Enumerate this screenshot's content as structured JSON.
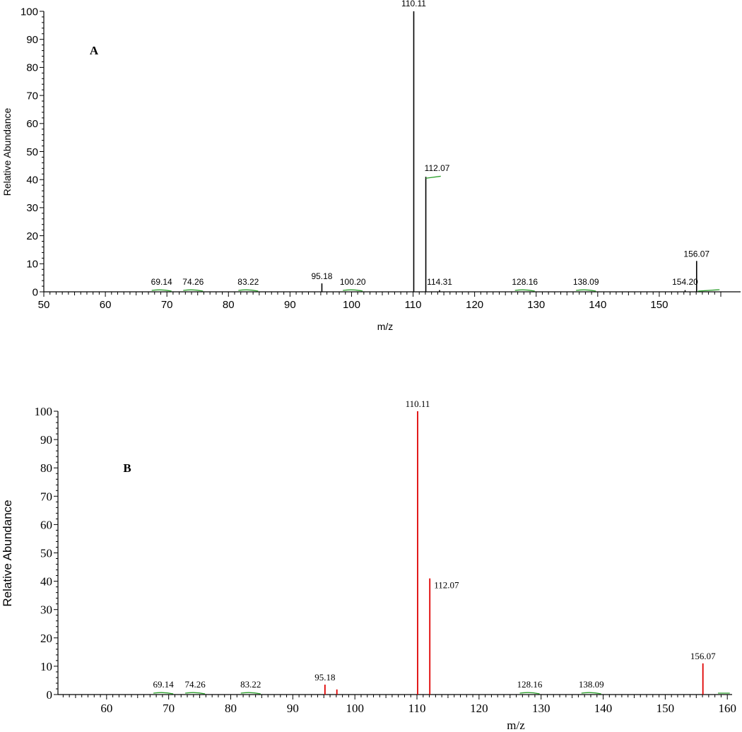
{
  "chart_data": [
    {
      "type": "bar",
      "panel_label": "A",
      "xlabel": "m/z",
      "ylabel": "Relative Abundance",
      "xlim": [
        50,
        160
      ],
      "ylim": [
        0,
        100
      ],
      "x_ticks": [
        50,
        60,
        70,
        80,
        90,
        100,
        110,
        120,
        130,
        140,
        150
      ],
      "y_ticks": [
        0,
        10,
        20,
        30,
        40,
        50,
        60,
        70,
        80,
        90,
        100
      ],
      "peak_color": "#000000",
      "baseline_trace_color": "#2ca02c",
      "peaks": [
        {
          "x": 69.14,
          "y": 0.5,
          "label": "69.14"
        },
        {
          "x": 74.26,
          "y": 0.3,
          "label": "74.26"
        },
        {
          "x": 83.22,
          "y": 0.3,
          "label": "83.22"
        },
        {
          "x": 95.18,
          "y": 3,
          "label": "95.18"
        },
        {
          "x": 100.2,
          "y": 0.5,
          "label": "100.20"
        },
        {
          "x": 110.11,
          "y": 100,
          "label": "110.11"
        },
        {
          "x": 112.07,
          "y": 41,
          "label": "112.07"
        },
        {
          "x": 114.31,
          "y": 0.6,
          "label": "114.31"
        },
        {
          "x": 128.16,
          "y": 0.2,
          "label": "128.16"
        },
        {
          "x": 138.09,
          "y": 0.2,
          "label": "138.09"
        },
        {
          "x": 154.2,
          "y": 0.6,
          "label": "154.20"
        },
        {
          "x": 156.07,
          "y": 11,
          "label": "156.07"
        }
      ]
    },
    {
      "type": "bar",
      "panel_label": "B",
      "xlabel": "m/z",
      "ylabel": "Relative Abundance",
      "xlim": [
        50,
        161
      ],
      "ylim": [
        0,
        100
      ],
      "x_ticks": [
        60,
        70,
        80,
        90,
        100,
        110,
        120,
        130,
        140,
        150,
        160
      ],
      "y_ticks": [
        0,
        10,
        20,
        30,
        40,
        50,
        60,
        70,
        80,
        90,
        100
      ],
      "peak_color": "#e00000",
      "baseline_trace_color": "#2ca02c",
      "peaks": [
        {
          "x": 69.14,
          "y": 0.4,
          "label": "69.14"
        },
        {
          "x": 74.26,
          "y": 0.3,
          "label": "74.26"
        },
        {
          "x": 83.22,
          "y": 0.3,
          "label": "83.22"
        },
        {
          "x": 95.18,
          "y": 3.5,
          "label": "95.18"
        },
        {
          "x": 97.1,
          "y": 1.8,
          "label": ""
        },
        {
          "x": 110.11,
          "y": 100,
          "label": "110.11"
        },
        {
          "x": 112.07,
          "y": 41,
          "label": "112.07"
        },
        {
          "x": 128.16,
          "y": 0.3,
          "label": "128.16"
        },
        {
          "x": 138.09,
          "y": 0.3,
          "label": "138.09"
        },
        {
          "x": 156.07,
          "y": 11,
          "label": "156.07"
        }
      ]
    }
  ]
}
